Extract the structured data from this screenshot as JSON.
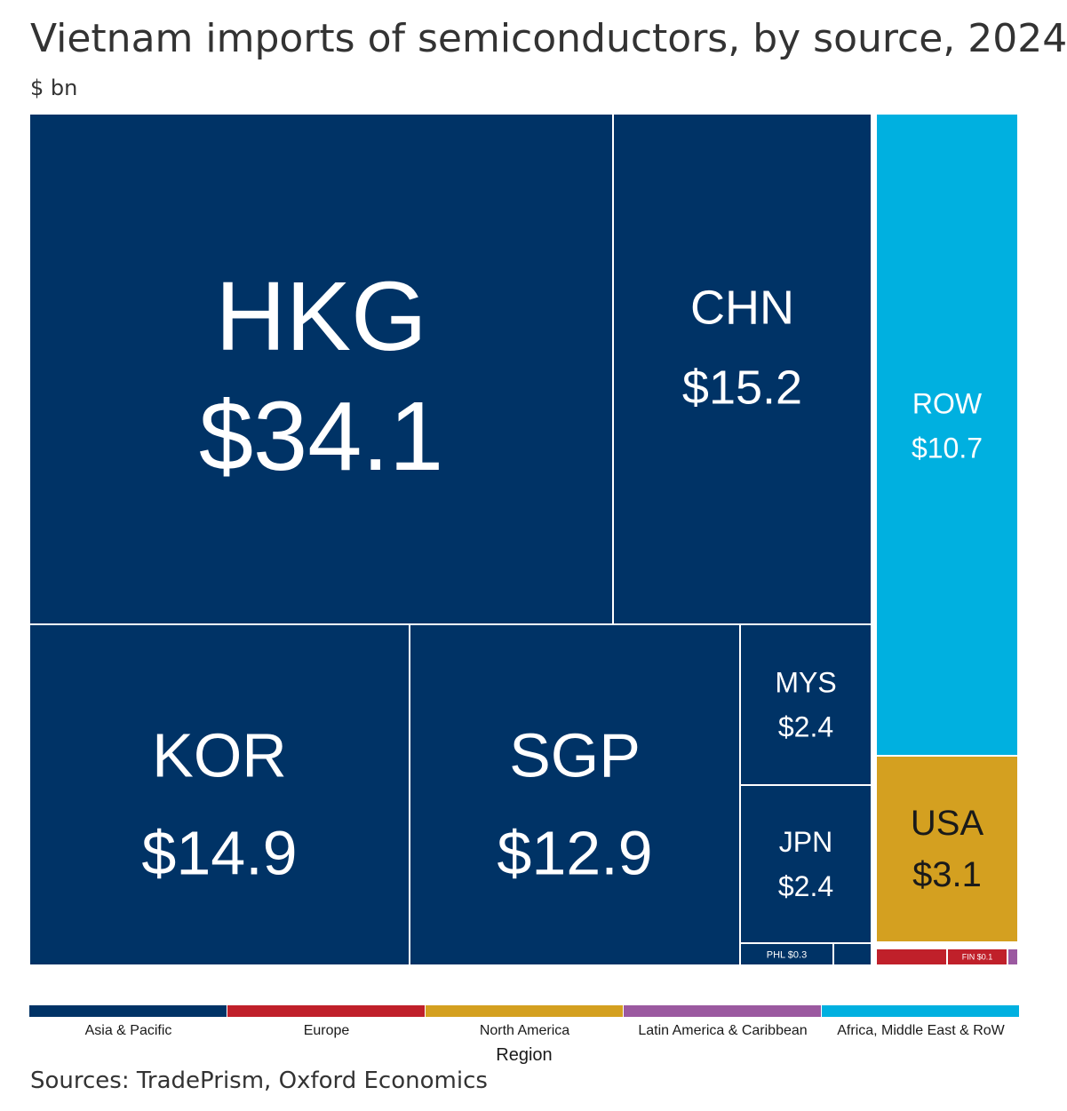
{
  "title": "Vietnam imports of semiconductors, by source, 2024",
  "subtitle": "$ bn",
  "source": "Sources: TradePrism, Oxford Economics",
  "chart_data": {
    "type": "treemap",
    "title": "Vietnam imports of semiconductors, by source, 2024",
    "unit": "$ bn",
    "legend_title": "Region",
    "regions": [
      {
        "name": "Asia & Pacific",
        "color": "#003366"
      },
      {
        "name": "Europe",
        "color": "#c0202a"
      },
      {
        "name": "North America",
        "color": "#d4a020"
      },
      {
        "name": "Latin America & Caribbean",
        "color": "#9b59a0"
      },
      {
        "name": "Africa, Middle East & RoW",
        "color": "#00b0e0"
      }
    ],
    "items": [
      {
        "code": "HKG",
        "value": 34.1,
        "value_label": "$34.1",
        "region": "Asia & Pacific"
      },
      {
        "code": "CHN",
        "value": 15.2,
        "value_label": "$15.2",
        "region": "Asia & Pacific"
      },
      {
        "code": "KOR",
        "value": 14.9,
        "value_label": "$14.9",
        "region": "Asia & Pacific"
      },
      {
        "code": "SGP",
        "value": 12.9,
        "value_label": "$12.9",
        "region": "Asia & Pacific"
      },
      {
        "code": "MYS",
        "value": 2.4,
        "value_label": "$2.4",
        "region": "Asia & Pacific"
      },
      {
        "code": "JPN",
        "value": 2.4,
        "value_label": "$2.4",
        "region": "Asia & Pacific"
      },
      {
        "code": "PHL",
        "value": 0.3,
        "value_label": "$0.3",
        "region": "Asia & Pacific"
      },
      {
        "code": "",
        "value": 0.2,
        "value_label": "",
        "region": "Asia & Pacific"
      },
      {
        "code": "ROW",
        "value": 10.7,
        "value_label": "$10.7",
        "region": "Africa, Middle East & RoW"
      },
      {
        "code": "USA",
        "value": 3.1,
        "value_label": "$3.1",
        "region": "North America"
      },
      {
        "code": "",
        "value": 0.2,
        "value_label": "",
        "region": "Europe"
      },
      {
        "code": "FIN",
        "value": 0.1,
        "value_label": "$0.1",
        "region": "Europe"
      },
      {
        "code": "",
        "value": 0.02,
        "value_label": "",
        "region": "Latin America & Caribbean"
      }
    ]
  }
}
